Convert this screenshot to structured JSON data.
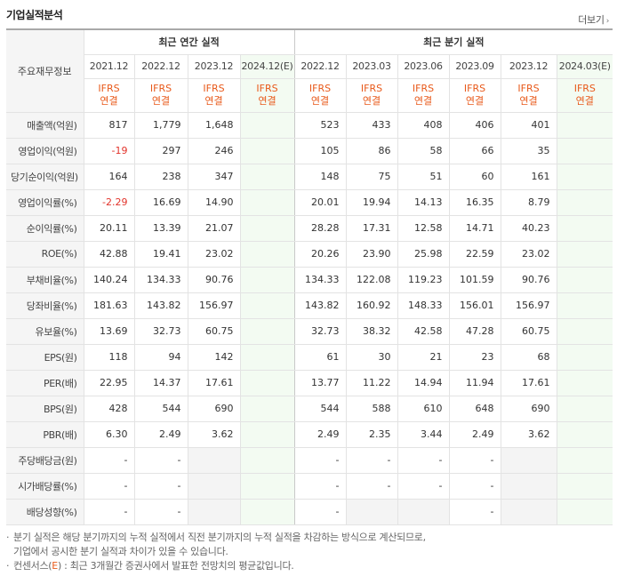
{
  "header": {
    "title": "기업실적분석",
    "more_label": "더보기"
  },
  "table": {
    "label_header": "주요재무정보",
    "annual_group": "최근 연간 실적",
    "quarter_group": "최근 분기 실적",
    "annual_periods": [
      "2021.12",
      "2022.12",
      "2023.12",
      "2024.12(E)"
    ],
    "quarter_periods": [
      "2022.12",
      "2023.03",
      "2023.06",
      "2023.09",
      "2023.12",
      "2024.03(E)"
    ],
    "basis_top": "IFRS",
    "basis_bottom": "연결",
    "rows": [
      {
        "label": "매출액(억원)",
        "annual": [
          "817",
          "1,779",
          "1,648",
          ""
        ],
        "quarter": [
          "523",
          "433",
          "408",
          "406",
          "401",
          ""
        ]
      },
      {
        "label": "영업이익(억원)",
        "annual": [
          "-19",
          "297",
          "246",
          ""
        ],
        "quarter": [
          "105",
          "86",
          "58",
          "66",
          "35",
          ""
        ]
      },
      {
        "label": "당기순이익(억원)",
        "annual": [
          "164",
          "238",
          "347",
          ""
        ],
        "quarter": [
          "148",
          "75",
          "51",
          "60",
          "161",
          ""
        ]
      },
      {
        "label": "영업이익률(%)",
        "annual": [
          "-2.29",
          "16.69",
          "14.90",
          ""
        ],
        "quarter": [
          "20.01",
          "19.94",
          "14.13",
          "16.35",
          "8.79",
          ""
        ]
      },
      {
        "label": "순이익률(%)",
        "annual": [
          "20.11",
          "13.39",
          "21.07",
          ""
        ],
        "quarter": [
          "28.28",
          "17.31",
          "12.58",
          "14.71",
          "40.23",
          ""
        ]
      },
      {
        "label": "ROE(%)",
        "annual": [
          "42.88",
          "19.41",
          "23.02",
          ""
        ],
        "quarter": [
          "20.26",
          "23.90",
          "25.98",
          "22.59",
          "23.02",
          ""
        ]
      },
      {
        "label": "부채비율(%)",
        "annual": [
          "140.24",
          "134.33",
          "90.76",
          ""
        ],
        "quarter": [
          "134.33",
          "122.08",
          "119.23",
          "101.59",
          "90.76",
          ""
        ]
      },
      {
        "label": "당좌비율(%)",
        "annual": [
          "181.63",
          "143.82",
          "156.97",
          ""
        ],
        "quarter": [
          "143.82",
          "160.92",
          "148.33",
          "156.01",
          "156.97",
          ""
        ]
      },
      {
        "label": "유보율(%)",
        "annual": [
          "13.69",
          "32.73",
          "60.75",
          ""
        ],
        "quarter": [
          "32.73",
          "38.32",
          "42.58",
          "47.28",
          "60.75",
          ""
        ]
      },
      {
        "label": "EPS(원)",
        "annual": [
          "118",
          "94",
          "142",
          ""
        ],
        "quarter": [
          "61",
          "30",
          "21",
          "23",
          "68",
          ""
        ]
      },
      {
        "label": "PER(배)",
        "annual": [
          "22.95",
          "14.37",
          "17.61",
          ""
        ],
        "quarter": [
          "13.77",
          "11.22",
          "14.94",
          "11.94",
          "17.61",
          ""
        ]
      },
      {
        "label": "BPS(원)",
        "annual": [
          "428",
          "544",
          "690",
          ""
        ],
        "quarter": [
          "544",
          "588",
          "610",
          "648",
          "690",
          ""
        ]
      },
      {
        "label": "PBR(배)",
        "annual": [
          "6.30",
          "2.49",
          "3.62",
          ""
        ],
        "quarter": [
          "2.49",
          "2.35",
          "3.44",
          "2.49",
          "3.62",
          ""
        ]
      },
      {
        "label": "주당배당금(원)",
        "annual": [
          "-",
          "-",
          "",
          ""
        ],
        "quarter": [
          "-",
          "-",
          "-",
          "-",
          "",
          ""
        ]
      },
      {
        "label": "시가배당률(%)",
        "annual": [
          "-",
          "-",
          "",
          ""
        ],
        "quarter": [
          "-",
          "-",
          "-",
          "-",
          "",
          ""
        ]
      },
      {
        "label": "배당성향(%)",
        "annual": [
          "-",
          "-",
          "",
          ""
        ],
        "quarter": [
          "-",
          "",
          "",
          "-",
          "",
          ""
        ]
      }
    ]
  },
  "notes": {
    "line1": "분기 실적은 해당 분기까지의 누적 실적에서 직전 분기까지의 누적 실적을 차감하는 방식으로 계산되므로,",
    "line2": "기업에서 공시한 분기 실적과 차이가 있을 수 있습니다.",
    "line3_prefix": "컨센서스(",
    "line3_e": "E",
    "line3_suffix": ") : 최근 3개월간 증권사에서 발표한 전망치의 평균값입니다."
  },
  "colors": {
    "ifrs": "#e8591a",
    "negative": "#e2332b",
    "estimate_bg": "#f3fbf2",
    "blank_bg": "#f4f4f4"
  }
}
